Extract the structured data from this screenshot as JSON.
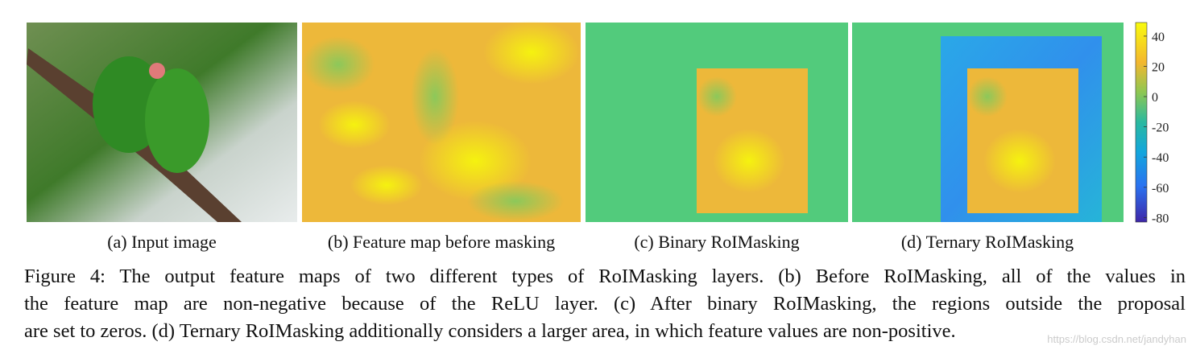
{
  "figure": {
    "panels": [
      {
        "caption": "(a) Input image"
      },
      {
        "caption": "(b) Feature map before masking"
      },
      {
        "caption": "(c) Binary RoIMasking"
      },
      {
        "caption": "(d) Ternary RoIMasking"
      }
    ],
    "colorbar": {
      "lim": [
        -83,
        49
      ],
      "ticks": [
        40,
        20,
        0,
        -20,
        -40,
        -60,
        -80
      ]
    },
    "caption_lines": [
      "Figure 4: The output feature maps of two different types of RoIMasking layers. (b) Before RoIMasking, all of the values in",
      "the feature map are non-negative because of the ReLU layer. (c) After binary RoIMasking, the regions outside the proposal",
      "are set to zeros. (d) Ternary RoIMasking additionally considers a larger area, in which feature values are non-positive."
    ],
    "watermark": "https://blog.csdn.net/jandyhan"
  }
}
